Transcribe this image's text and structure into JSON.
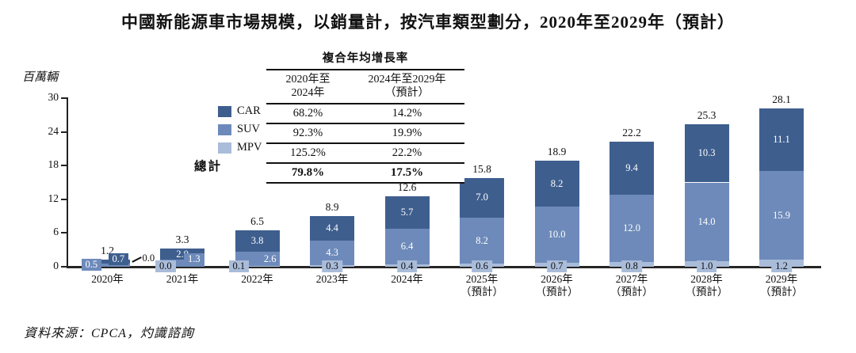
{
  "title": "中國新能源車市場規模，以銷量計，按汽車類型劃分，2020年至2029年（預計）",
  "y_axis_label": "百萬輛",
  "legend": [
    {
      "label": "CAR",
      "color": "#3e5e8e"
    },
    {
      "label": "SUV",
      "color": "#6d8aba"
    },
    {
      "label": "MPV",
      "color": "#a9bcd9"
    }
  ],
  "total_label": "總計",
  "cagr_table": {
    "title": "複合年均增長率",
    "col1_header": "2020年至\n2024年",
    "col2_header": "2024年至2029年\n（預計）",
    "rows": [
      {
        "c1": "68.2%",
        "c2": "14.2%"
      },
      {
        "c1": "92.3%",
        "c2": "19.9%"
      },
      {
        "c1": "125.2%",
        "c2": "22.2%"
      }
    ],
    "total_row": {
      "c1": "79.8%",
      "c2": "17.5%"
    }
  },
  "source": "資料來源：CPCA，灼識諮詢",
  "chart_data": {
    "type": "bar",
    "stacked": true,
    "title": "中國新能源車市場規模，以銷量計，按汽車類型劃分，2020年至2029年（預計）",
    "ylabel": "百萬輛",
    "ylim": [
      0,
      30
    ],
    "yticks": [
      0,
      6,
      12,
      18,
      24,
      30
    ],
    "grid": false,
    "legend_position": "upper-left",
    "stack_order_bottom_to_top": [
      "MPV",
      "SUV",
      "CAR"
    ],
    "categories": [
      "2020年",
      "2021年",
      "2022年",
      "2023年",
      "2024年",
      "2025年\n（預計）",
      "2026年\n（預計）",
      "2027年\n（預計）",
      "2028年\n（預計）",
      "2029年\n（預計）"
    ],
    "series": [
      {
        "name": "CAR",
        "color": "#3e5e8e",
        "values": [
          0.7,
          2.0,
          3.8,
          4.4,
          5.7,
          7.0,
          8.2,
          9.4,
          10.3,
          11.1
        ]
      },
      {
        "name": "SUV",
        "color": "#6d8aba",
        "values": [
          0.5,
          1.3,
          2.6,
          4.3,
          6.4,
          8.2,
          10.0,
          12.0,
          14.0,
          15.9
        ]
      },
      {
        "name": "MPV",
        "color": "#a9bcd9",
        "values": [
          0.0,
          0.0,
          0.1,
          0.3,
          0.4,
          0.6,
          0.7,
          0.8,
          1.0,
          1.2
        ]
      }
    ],
    "totals": [
      1.2,
      3.3,
      6.5,
      8.9,
      12.6,
      15.8,
      18.9,
      22.2,
      25.3,
      28.1
    ]
  }
}
